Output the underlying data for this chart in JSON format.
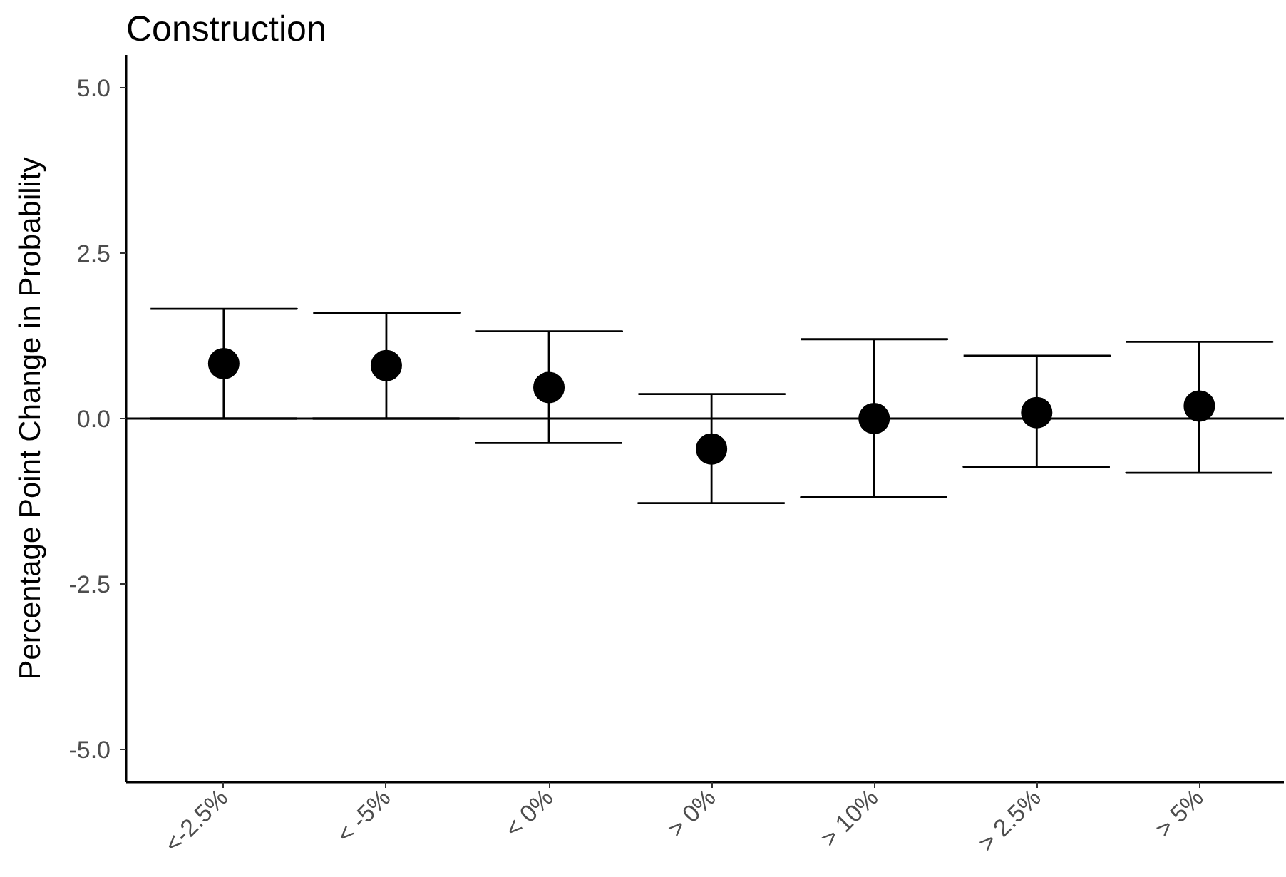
{
  "chart_data": {
    "type": "scatter",
    "title": "Construction",
    "ylabel": "Percentage Point Change in Probability",
    "categories": [
      "<-2.5%",
      "< -5%",
      "< 0%",
      "> 0%",
      "> 10%",
      "> 2.5%",
      "> 5%"
    ],
    "values": [
      0.83,
      0.8,
      0.47,
      -0.46,
      0.0,
      0.09,
      0.19
    ],
    "errors": [
      [
        0.0,
        1.66
      ],
      [
        0.0,
        1.6
      ],
      [
        -0.37,
        1.32
      ],
      [
        -1.28,
        0.37
      ],
      [
        -1.19,
        1.2
      ],
      [
        -0.73,
        0.95
      ],
      [
        -0.82,
        1.16
      ]
    ],
    "color": "#000000",
    "marker": "circle",
    "ylim": [
      -5.5,
      5.5
    ],
    "yticks": [
      {
        "value": -5,
        "label": "-5.0"
      },
      {
        "value": -2.5,
        "label": "-2.5"
      },
      {
        "value": 0,
        "label": "0.0"
      },
      {
        "value": 2.5,
        "label": "2.5"
      },
      {
        "value": 5,
        "label": "5.0"
      }
    ],
    "ref_lines": [
      {
        "axis": "y",
        "value": 0,
        "color": "#000000"
      }
    ],
    "grid": false
  }
}
